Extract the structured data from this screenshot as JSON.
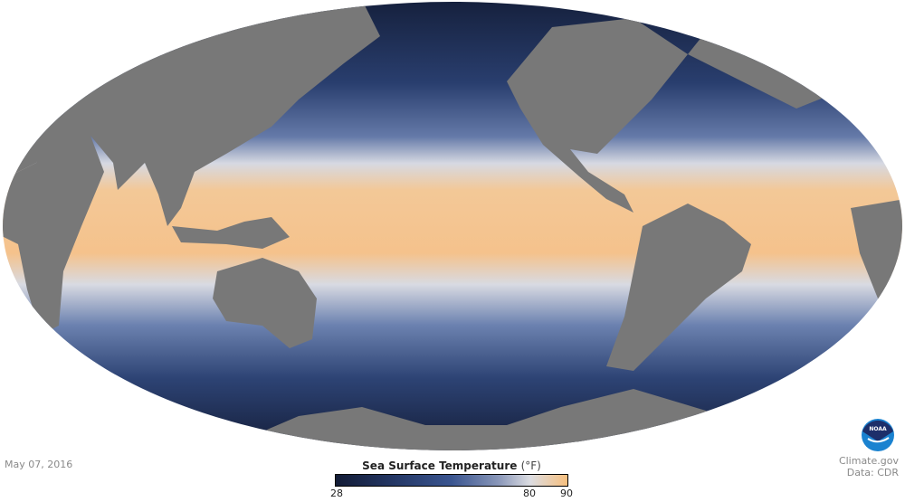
{
  "date": "May 07, 2016",
  "legend": {
    "title": "Sea Surface Temperature",
    "unit": "(°F)",
    "min": 28,
    "max": 90,
    "ticks": [
      {
        "label": "28",
        "value": 28
      },
      {
        "label": "80",
        "value": 80
      },
      {
        "label": "90",
        "value": 90
      }
    ],
    "colors": [
      "#131c36",
      "#3a5590",
      "#dcdde2",
      "#f7bf7e"
    ]
  },
  "credit": {
    "line1": "Climate.gov",
    "line2": "Data: CDR",
    "logo_text": "NOAA"
  },
  "map": {
    "projection": "mollweide",
    "land_color": "#787878",
    "cold_color": "#17223f",
    "warm_color": "#f6c28a"
  }
}
